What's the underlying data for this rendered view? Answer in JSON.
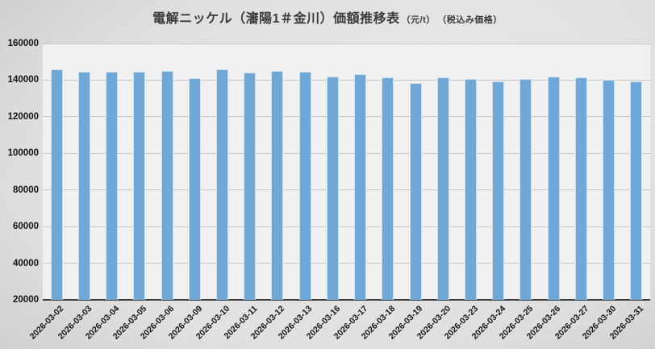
{
  "title": {
    "main": "電解ニッケル（瀋陽1＃金川）価額推移表",
    "unit": "（元/t）",
    "note": "（税込み価格）"
  },
  "chart_data": {
    "type": "bar",
    "title": "電解ニッケル（瀋陽1＃金川）価額推移表（元/t）（税込み価格）",
    "categories": [
      "2026-03-02",
      "2026-03-03",
      "2026-03-04",
      "2026-03-05",
      "2026-03-06",
      "2026-03-09",
      "2026-03-10",
      "2026-03-11",
      "2026-03-12",
      "2026-03-13",
      "2026-03-16",
      "2026-03-17",
      "2026-03-18",
      "2026-03-19",
      "2026-03-20",
      "2026-03-23",
      "2026-03-24",
      "2026-03-25",
      "2026-03-26",
      "2026-03-27",
      "2026-03-30",
      "2026-03-31"
    ],
    "values": [
      145900,
      144700,
      144400,
      144500,
      144900,
      140900,
      146000,
      144100,
      145000,
      144400,
      142100,
      143400,
      141600,
      138600,
      141300,
      140700,
      139500,
      140800,
      142000,
      141500,
      140400,
      139100
    ],
    "xlabel": "",
    "ylabel": "",
    "ylim": [
      20000,
      160000
    ],
    "yticks": [
      20000,
      40000,
      60000,
      80000,
      100000,
      120000,
      140000,
      160000
    ],
    "grid": true,
    "legend": "none",
    "bar_color": "#6fa8d6",
    "bar_border_color": "#cfe0ef",
    "plot_bg": "#f1f1f2",
    "gridline_color": "#c9c9c9",
    "axis_line_color": "#3a3a3a"
  }
}
